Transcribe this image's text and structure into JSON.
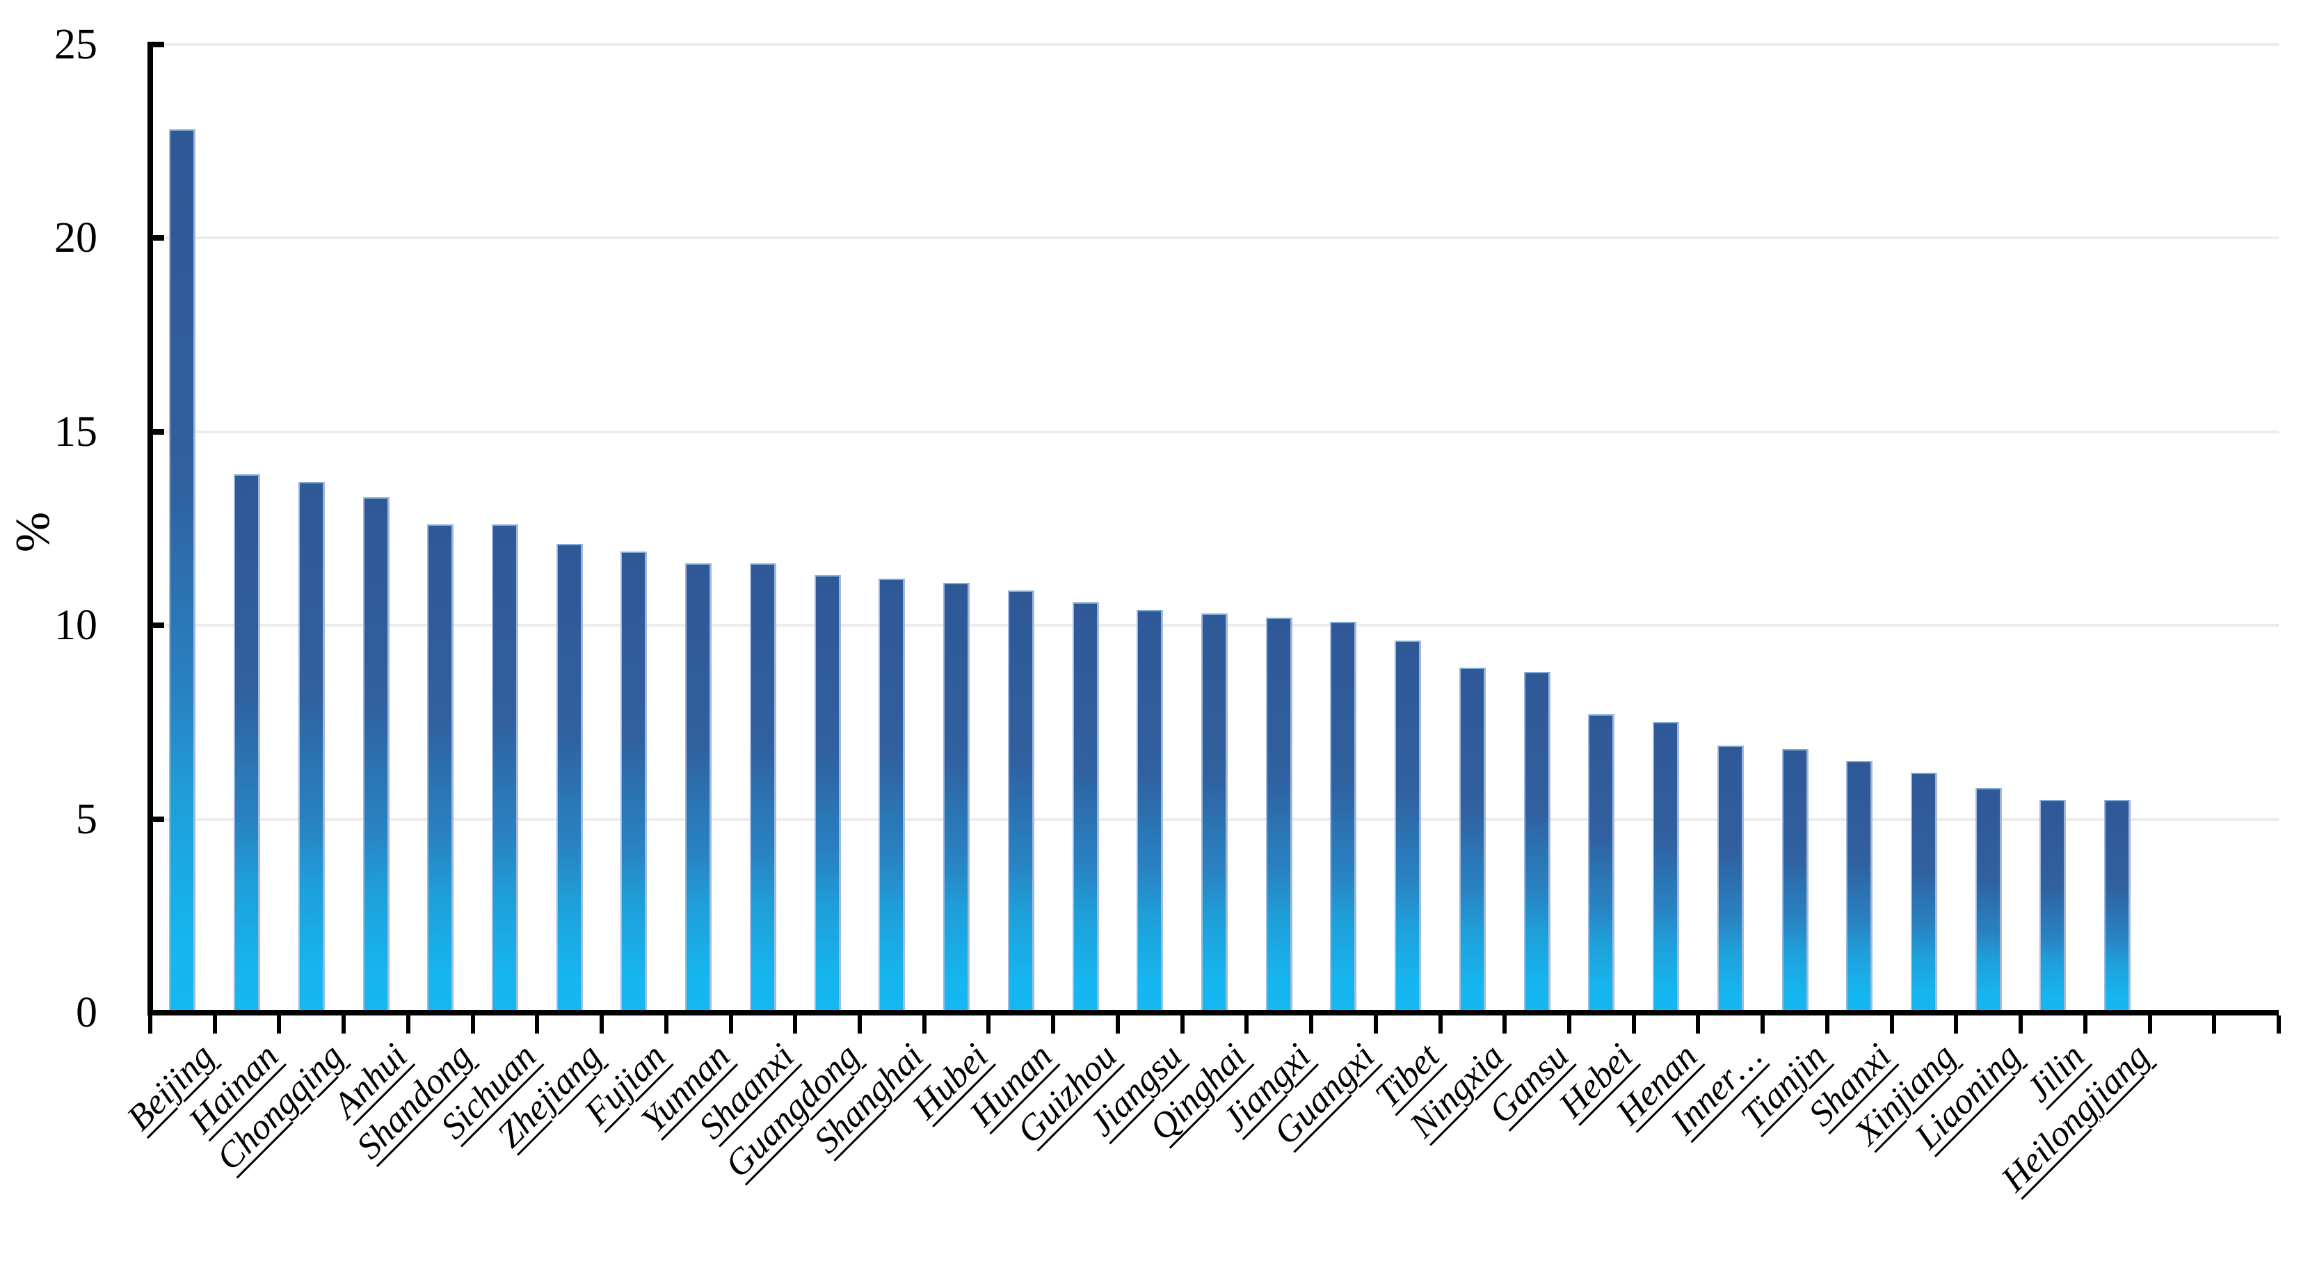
{
  "page": {
    "background": "#FFFFFF"
  },
  "chart_data": {
    "type": "bar",
    "title": "",
    "xlabel": "",
    "ylabel": "%",
    "ylim": [
      0,
      25
    ],
    "yticks": [
      0,
      5,
      10,
      15,
      20,
      25
    ],
    "grid": "horizontal",
    "legend_position": "none",
    "categories": [
      "Beijing",
      "Hainan",
      "Chongqing",
      "Anhui",
      "Shandong",
      "Sichuan",
      "Zhejiang",
      "Fujian",
      "Yunnan",
      "Shaanxi",
      "Guangdong",
      "Shanghai",
      "Hubei",
      "Hunan",
      "Guizhou",
      "Jiangsu",
      "Qinghai",
      "Jiangxi",
      "Guangxi",
      "Tibet",
      "Ningxia",
      "Gansu",
      "Hebei",
      "Henan",
      "Inner…",
      "Tianjin",
      "Shanxi",
      "Xinjiang",
      "Liaoning",
      "Jilin",
      "Heilongjiang"
    ],
    "values": [
      22.8,
      13.9,
      13.7,
      13.3,
      12.6,
      12.6,
      12.1,
      11.9,
      11.6,
      11.6,
      11.3,
      11.2,
      11.1,
      10.9,
      10.6,
      10.4,
      10.3,
      10.2,
      10.1,
      9.6,
      8.9,
      8.8,
      7.7,
      7.5,
      6.9,
      6.8,
      6.5,
      6.2,
      5.8,
      5.5,
      5.5
    ],
    "colors": {
      "bar_gradient_top": "#2F5897",
      "bar_gradient_middle": "#2A78B8",
      "bar_gradient_bottom": "#14B8F2",
      "bar_edge_highlight": "#A7BCDF",
      "axis": "#000000",
      "gridline": "#ECECEC",
      "text": "#000000"
    }
  }
}
